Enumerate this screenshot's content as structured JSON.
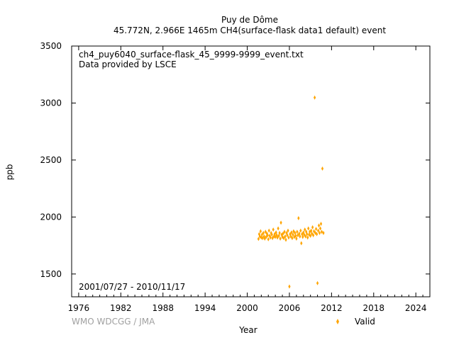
{
  "chart_data": {
    "type": "scatter",
    "title": "Puy de Dôme",
    "subtitle": "45.772N, 2.966E 1465m    CH4(surface-flask data1 default) event",
    "xlabel": "Year",
    "ylabel": "ppb",
    "xlim": [
      1975,
      2026
    ],
    "ylim": [
      1300,
      3500
    ],
    "x_ticks": [
      1976,
      1982,
      1988,
      1994,
      2000,
      2006,
      2012,
      2018,
      2024
    ],
    "y_ticks": [
      1500,
      2000,
      2500,
      3000,
      3500
    ],
    "grid": false,
    "legend_position": "bottom-right",
    "series": [
      {
        "name": "Valid",
        "color": "#ffa500",
        "marker": "diamond",
        "points": [
          [
            2001.6,
            1808
          ],
          [
            2001.7,
            1850
          ],
          [
            2001.8,
            1830
          ],
          [
            2001.9,
            1875
          ],
          [
            2002.0,
            1820
          ],
          [
            2002.1,
            1845
          ],
          [
            2002.2,
            1815
          ],
          [
            2002.3,
            1860
          ],
          [
            2002.4,
            1830
          ],
          [
            2002.5,
            1810
          ],
          [
            2002.6,
            1870
          ],
          [
            2002.7,
            1825
          ],
          [
            2002.8,
            1855
          ],
          [
            2002.9,
            1840
          ],
          [
            2003.0,
            1805
          ],
          [
            2003.1,
            1880
          ],
          [
            2003.2,
            1835
          ],
          [
            2003.3,
            1820
          ],
          [
            2003.4,
            1860
          ],
          [
            2003.5,
            1845
          ],
          [
            2003.6,
            1815
          ],
          [
            2003.7,
            1890
          ],
          [
            2003.8,
            1830
          ],
          [
            2003.9,
            1850
          ],
          [
            2004.0,
            1825
          ],
          [
            2004.1,
            1865
          ],
          [
            2004.2,
            1840
          ],
          [
            2004.3,
            1820
          ],
          [
            2004.4,
            1900
          ],
          [
            2004.5,
            1835
          ],
          [
            2004.6,
            1860
          ],
          [
            2004.7,
            1810
          ],
          [
            2004.8,
            1950
          ],
          [
            2004.9,
            1845
          ],
          [
            2005.0,
            1825
          ],
          [
            2005.1,
            1855
          ],
          [
            2005.2,
            1815
          ],
          [
            2005.3,
            1870
          ],
          [
            2005.4,
            1830
          ],
          [
            2005.5,
            1800
          ],
          [
            2005.6,
            1860
          ],
          [
            2005.7,
            1840
          ],
          [
            2005.8,
            1880
          ],
          [
            2005.9,
            1820
          ],
          [
            2006.0,
            1390
          ],
          [
            2006.1,
            1850
          ],
          [
            2006.2,
            1830
          ],
          [
            2006.3,
            1865
          ],
          [
            2006.4,
            1815
          ],
          [
            2006.5,
            1845
          ],
          [
            2006.6,
            1875
          ],
          [
            2006.7,
            1825
          ],
          [
            2006.8,
            1860
          ],
          [
            2006.9,
            1835
          ],
          [
            2007.0,
            1810
          ],
          [
            2007.1,
            1870
          ],
          [
            2007.2,
            1840
          ],
          [
            2007.3,
            1990
          ],
          [
            2007.4,
            1855
          ],
          [
            2007.5,
            1830
          ],
          [
            2007.6,
            1880
          ],
          [
            2007.7,
            1770
          ],
          [
            2007.8,
            1850
          ],
          [
            2007.9,
            1825
          ],
          [
            2008.0,
            1865
          ],
          [
            2008.1,
            1845
          ],
          [
            2008.2,
            1890
          ],
          [
            2008.3,
            1830
          ],
          [
            2008.4,
            1870
          ],
          [
            2008.5,
            1850
          ],
          [
            2008.6,
            1820
          ],
          [
            2008.7,
            1900
          ],
          [
            2008.8,
            1845
          ],
          [
            2008.9,
            1870
          ],
          [
            2009.0,
            1835
          ],
          [
            2009.1,
            1880
          ],
          [
            2009.2,
            1855
          ],
          [
            2009.3,
            1910
          ],
          [
            2009.4,
            1840
          ],
          [
            2009.5,
            1875
          ],
          [
            2009.6,
            3048
          ],
          [
            2009.7,
            1860
          ],
          [
            2009.8,
            1895
          ],
          [
            2009.9,
            1850
          ],
          [
            2010.0,
            1420
          ],
          [
            2010.1,
            1880
          ],
          [
            2010.2,
            1925
          ],
          [
            2010.3,
            1860
          ],
          [
            2010.4,
            1900
          ],
          [
            2010.5,
            1940
          ],
          [
            2010.6,
            1870
          ],
          [
            2010.7,
            2425
          ],
          [
            2010.85,
            1860
          ]
        ]
      }
    ]
  },
  "annotations": {
    "filename": "ch4_puy6040_surface-flask_45_9999-9999_event.txt",
    "provider": "Data provided by LSCE",
    "date_range": "2001/07/27 - 2010/11/17",
    "credit": "WMO WDCGG / JMA"
  }
}
